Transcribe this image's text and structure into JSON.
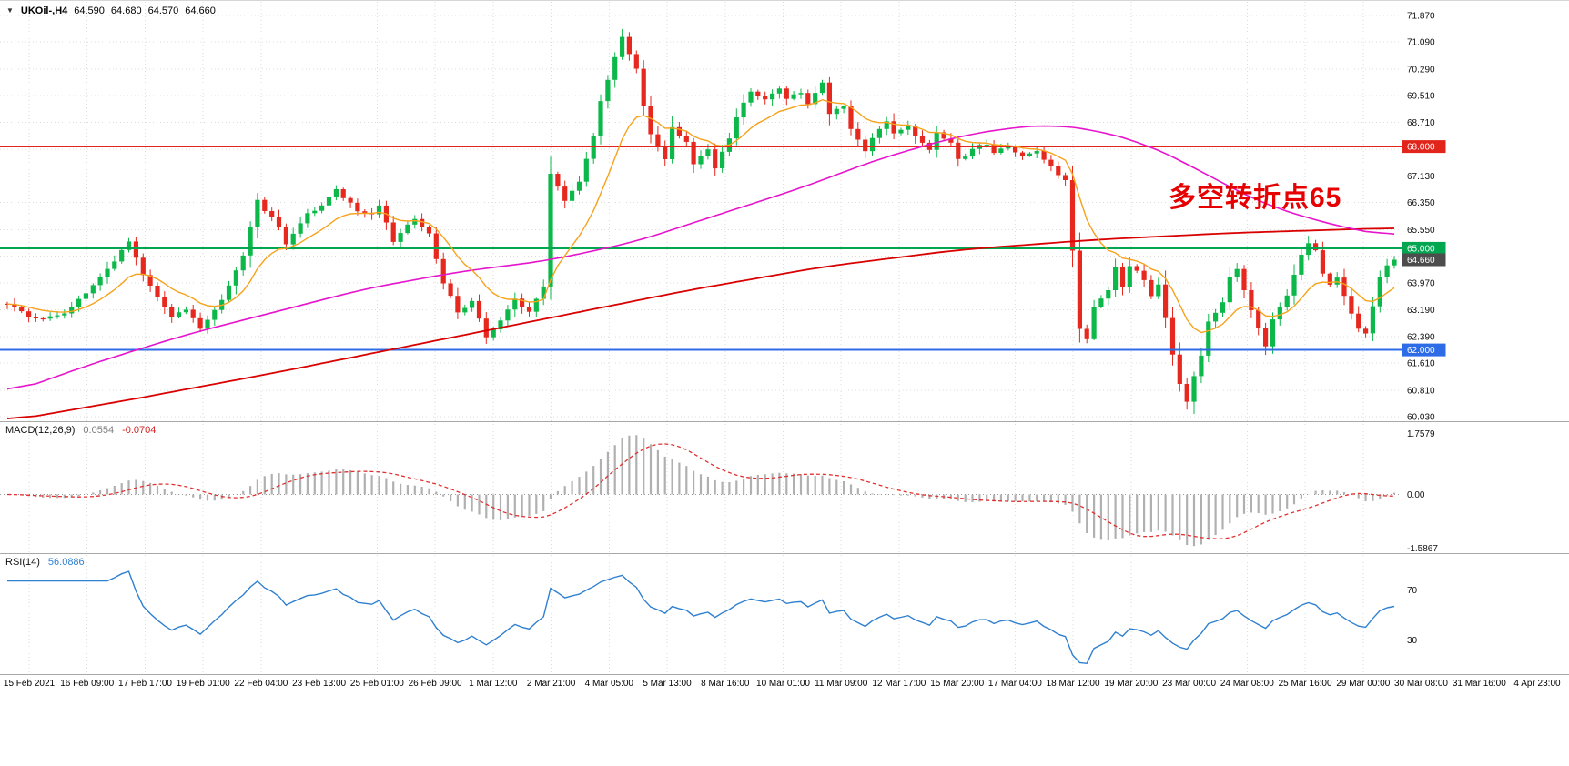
{
  "header": {
    "dropdown_icon": "▼",
    "title": "UKOil-,H4",
    "open": "64.590",
    "high": "64.680",
    "low": "64.570",
    "close": "64.660"
  },
  "annotation": {
    "text": "多空转折点65",
    "color": "#e60000"
  },
  "macd_header": {
    "name": "MACD(12,26,9)",
    "main_value": "0.0554",
    "signal_value": "-0.0704"
  },
  "rsi_header": {
    "name": "RSI(14)",
    "value": "56.0886"
  },
  "colors": {
    "background": "#ffffff",
    "grid": "#dcdcdc",
    "panel_border": "#a8a8a8",
    "axis_text": "#111111",
    "up_candle": "#0db84a",
    "down_candle": "#e6281e",
    "annotation_red": "#e60000"
  },
  "chart_data": [
    {
      "type": "candlestick",
      "symbol": "UKOil-",
      "timeframe": "H4",
      "current": {
        "open": 64.59,
        "high": 64.68,
        "low": 64.57,
        "close": 64.66
      },
      "bars_total": 195,
      "ylim": [
        59.9,
        72.3
      ],
      "x_labels": [
        "15 Feb 2021",
        "16 Feb 09:00",
        "17 Feb 17:00",
        "19 Feb 01:00",
        "22 Feb 04:00",
        "23 Feb 13:00",
        "25 Feb 01:00",
        "26 Feb 09:00",
        "1 Mar 12:00",
        "2 Mar 21:00",
        "4 Mar 05:00",
        "5 Mar 13:00",
        "8 Mar 16:00",
        "10 Mar 01:00",
        "11 Mar 09:00",
        "12 Mar 17:00",
        "15 Mar 20:00",
        "17 Mar 04:00",
        "18 Mar 12:00",
        "19 Mar 20:00",
        "23 Mar 00:00",
        "24 Mar 08:00",
        "25 Mar 16:00",
        "29 Mar 00:00",
        "30 Mar 08:00",
        "31 Mar 16:00",
        "4 Apr 23:00"
      ],
      "y_ticks": [
        {
          "value": 71.87,
          "label": "71.870"
        },
        {
          "value": 71.09,
          "label": "71.090"
        },
        {
          "value": 70.29,
          "label": "70.290"
        },
        {
          "value": 69.51,
          "label": "69.510"
        },
        {
          "value": 68.71,
          "label": "68.710"
        },
        {
          "value": 67.93,
          "label": "67.930"
        },
        {
          "value": 67.13,
          "label": "67.130"
        },
        {
          "value": 66.35,
          "label": "66.350"
        },
        {
          "value": 65.55,
          "label": "65.550"
        },
        {
          "value": 64.77,
          "label": "64.770"
        },
        {
          "value": 63.97,
          "label": "63.970"
        },
        {
          "value": 63.19,
          "label": "63.190"
        },
        {
          "value": 62.39,
          "label": "62.390"
        },
        {
          "value": 61.61,
          "label": "61.610"
        },
        {
          "value": 60.81,
          "label": "60.810"
        },
        {
          "value": 60.03,
          "label": "60.030"
        }
      ],
      "price_lines": [
        {
          "value": 68.0,
          "label": "68.000",
          "color": "#e1251b"
        },
        {
          "value": 65.0,
          "label": "65.000",
          "color": "#00a650"
        },
        {
          "value": 62.0,
          "label": "62.000",
          "color": "#2e6be6"
        }
      ],
      "current_price_badge": {
        "value": 64.66,
        "label": "64.660",
        "color": "#4d4d4d"
      },
      "up_color": "#0db84a",
      "down_color": "#e6281e",
      "close_anchors": [
        [
          0,
          63.4
        ],
        [
          2,
          63.15
        ],
        [
          4,
          62.9
        ],
        [
          8,
          63.1
        ],
        [
          12,
          63.9
        ],
        [
          15,
          64.6
        ],
        [
          17,
          65.2
        ],
        [
          19,
          64.2
        ],
        [
          21,
          63.6
        ],
        [
          23,
          63.0
        ],
        [
          25,
          63.2
        ],
        [
          27,
          62.6
        ],
        [
          30,
          63.5
        ],
        [
          33,
          64.8
        ],
        [
          35,
          66.4
        ],
        [
          38,
          65.6
        ],
        [
          39,
          65.1
        ],
        [
          42,
          66.0
        ],
        [
          44,
          66.3
        ],
        [
          46,
          66.7
        ],
        [
          49,
          66.1
        ],
        [
          51,
          66.0
        ],
        [
          52,
          66.3
        ],
        [
          54,
          65.2
        ],
        [
          57,
          65.9
        ],
        [
          59,
          65.4
        ],
        [
          61,
          64.0
        ],
        [
          63,
          63.1
        ],
        [
          65,
          63.4
        ],
        [
          67,
          62.4
        ],
        [
          69,
          62.9
        ],
        [
          71,
          63.5
        ],
        [
          73,
          63.1
        ],
        [
          75,
          63.9
        ],
        [
          76,
          67.2
        ],
        [
          78,
          66.4
        ],
        [
          80,
          67.0
        ],
        [
          82,
          68.3
        ],
        [
          83,
          69.3
        ],
        [
          85,
          70.6
        ],
        [
          86,
          71.2
        ],
        [
          88,
          70.3
        ],
        [
          89,
          69.2
        ],
        [
          90,
          68.4
        ],
        [
          92,
          67.6
        ],
        [
          93,
          68.6
        ],
        [
          95,
          68.1
        ],
        [
          96,
          67.5
        ],
        [
          98,
          67.9
        ],
        [
          99,
          67.4
        ],
        [
          101,
          68.2
        ],
        [
          102,
          68.9
        ],
        [
          104,
          69.6
        ],
        [
          106,
          69.4
        ],
        [
          108,
          69.7
        ],
        [
          109,
          69.4
        ],
        [
          111,
          69.6
        ],
        [
          112,
          69.3
        ],
        [
          114,
          69.9
        ],
        [
          115,
          69.0
        ],
        [
          117,
          69.2
        ],
        [
          118,
          68.5
        ],
        [
          120,
          67.9
        ],
        [
          121,
          68.3
        ],
        [
          123,
          68.7
        ],
        [
          124,
          68.4
        ],
        [
          126,
          68.6
        ],
        [
          127,
          68.3
        ],
        [
          129,
          67.9
        ],
        [
          130,
          68.4
        ],
        [
          132,
          68.1
        ],
        [
          133,
          67.6
        ],
        [
          135,
          67.9
        ],
        [
          137,
          68.1
        ],
        [
          138,
          67.8
        ],
        [
          140,
          68.0
        ],
        [
          142,
          67.7
        ],
        [
          144,
          67.9
        ],
        [
          146,
          67.4
        ],
        [
          148,
          67.0
        ],
        [
          149,
          64.9
        ],
        [
          150,
          62.6
        ],
        [
          151,
          62.3
        ],
        [
          152,
          63.3
        ],
        [
          154,
          63.8
        ],
        [
          155,
          64.4
        ],
        [
          156,
          63.9
        ],
        [
          157,
          64.5
        ],
        [
          159,
          64.1
        ],
        [
          160,
          63.6
        ],
        [
          161,
          63.9
        ],
        [
          162,
          62.9
        ],
        [
          163,
          61.9
        ],
        [
          164,
          61.0
        ],
        [
          165,
          60.45
        ],
        [
          166,
          61.2
        ],
        [
          167,
          61.8
        ],
        [
          168,
          62.8
        ],
        [
          170,
          63.4
        ],
        [
          171,
          64.1
        ],
        [
          172,
          64.4
        ],
        [
          173,
          63.8
        ],
        [
          174,
          63.2
        ],
        [
          175,
          62.6
        ],
        [
          176,
          62.1
        ],
        [
          177,
          62.9
        ],
        [
          179,
          63.6
        ],
        [
          180,
          64.2
        ],
        [
          181,
          64.8
        ],
        [
          182,
          65.2
        ],
        [
          183,
          64.9
        ],
        [
          184,
          64.3
        ],
        [
          185,
          63.9
        ],
        [
          186,
          64.1
        ],
        [
          187,
          63.6
        ],
        [
          188,
          63.1
        ],
        [
          189,
          62.6
        ],
        [
          190,
          62.5
        ],
        [
          191,
          63.3
        ],
        [
          192,
          64.1
        ],
        [
          193,
          64.5
        ],
        [
          194,
          64.66
        ]
      ],
      "moving_averages": [
        {
          "name": "ma-fast",
          "color": "#f7a21b",
          "method": "ema",
          "period": 12
        },
        {
          "name": "ma-medium",
          "color": "#e614cc",
          "anchors": [
            [
              0,
              60.7
            ],
            [
              12,
              61.6
            ],
            [
              25,
              62.45
            ],
            [
              38,
              63.15
            ],
            [
              50,
              63.8
            ],
            [
              63,
              64.3
            ],
            [
              76,
              64.65
            ],
            [
              88,
              65.2
            ],
            [
              101,
              66.1
            ],
            [
              107,
              66.5
            ],
            [
              114,
              67.0
            ],
            [
              120,
              67.5
            ],
            [
              127,
              67.95
            ],
            [
              133,
              68.3
            ],
            [
              140,
              68.55
            ],
            [
              146,
              68.65
            ],
            [
              152,
              68.5
            ],
            [
              159,
              68.1
            ],
            [
              165,
              67.5
            ],
            [
              171,
              66.8
            ],
            [
              177,
              66.2
            ],
            [
              182,
              65.9
            ],
            [
              187,
              65.6
            ],
            [
              194,
              65.35
            ]
          ]
        },
        {
          "name": "ma-slow",
          "color": "#d90000",
          "anchors": [
            [
              0,
              59.9
            ],
            [
              19,
              60.6
            ],
            [
              38,
              61.35
            ],
            [
              57,
              62.15
            ],
            [
              76,
              62.95
            ],
            [
              95,
              63.75
            ],
            [
              114,
              64.45
            ],
            [
              133,
              64.95
            ],
            [
              152,
              65.25
            ],
            [
              171,
              65.45
            ],
            [
              194,
              65.6
            ]
          ]
        }
      ]
    },
    {
      "type": "macd",
      "name": "MACD",
      "params": [
        12,
        26,
        9
      ],
      "main_value": 0.0554,
      "signal_value": -0.0704,
      "y_tick_labels": [
        "1.7579",
        "0.00",
        "-1.5867"
      ],
      "histogram_color": "#b0b0b0",
      "signal_color": "#e03030"
    },
    {
      "type": "line",
      "name": "RSI",
      "period": 14,
      "value": 56.0886,
      "levels": [
        70,
        30
      ],
      "level_labels": [
        "70",
        "30"
      ],
      "line_color": "#2f80d0"
    }
  ]
}
